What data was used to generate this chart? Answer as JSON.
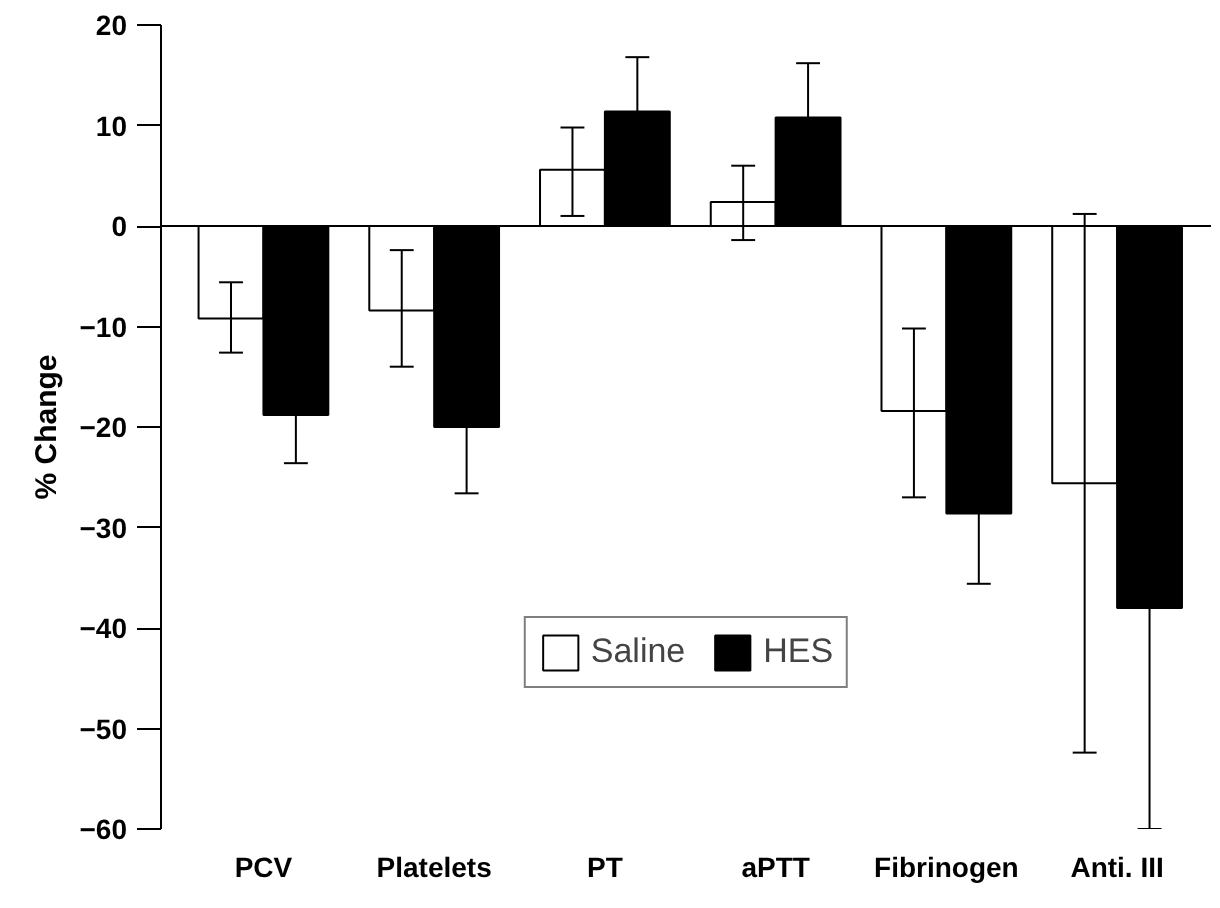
{
  "chart_data": {
    "type": "bar",
    "ylabel": "% Change",
    "categories": [
      "PCV",
      "Platelets",
      "PT",
      "aPTT",
      "Fibrinogen",
      "Anti. III"
    ],
    "series": [
      {
        "name": "Saline",
        "color": "#ffffff",
        "values": [
          -9.2,
          -8.4,
          5.6,
          2.4,
          -18.4,
          -25.6
        ],
        "errors": [
          [
            -12.6,
            -5.6
          ],
          [
            -14,
            -2.4
          ],
          [
            1,
            9.8
          ],
          [
            -1.4,
            6
          ],
          [
            -27,
            -10.2
          ],
          [
            -52.4,
            1.2
          ]
        ]
      },
      {
        "name": "HES",
        "color": "#000000",
        "values": [
          -18.8,
          -20,
          11.4,
          10.8,
          -28.6,
          -38
        ],
        "errors": [
          [
            -23.6,
            -18.8
          ],
          [
            -26.6,
            -20
          ],
          [
            11.4,
            16.8
          ],
          [
            10.8,
            16.2
          ],
          [
            -35.6,
            -28.6
          ],
          [
            -60,
            -38
          ]
        ]
      }
    ],
    "ylim": [
      -60,
      20
    ],
    "yticks": [
      -60,
      -50,
      -40,
      -30,
      -20,
      -10,
      0,
      10,
      20
    ],
    "ref_lines": [
      {
        "axis": "y",
        "value": 0,
        "label": null
      }
    ],
    "grid": false,
    "legend": "bottom"
  }
}
